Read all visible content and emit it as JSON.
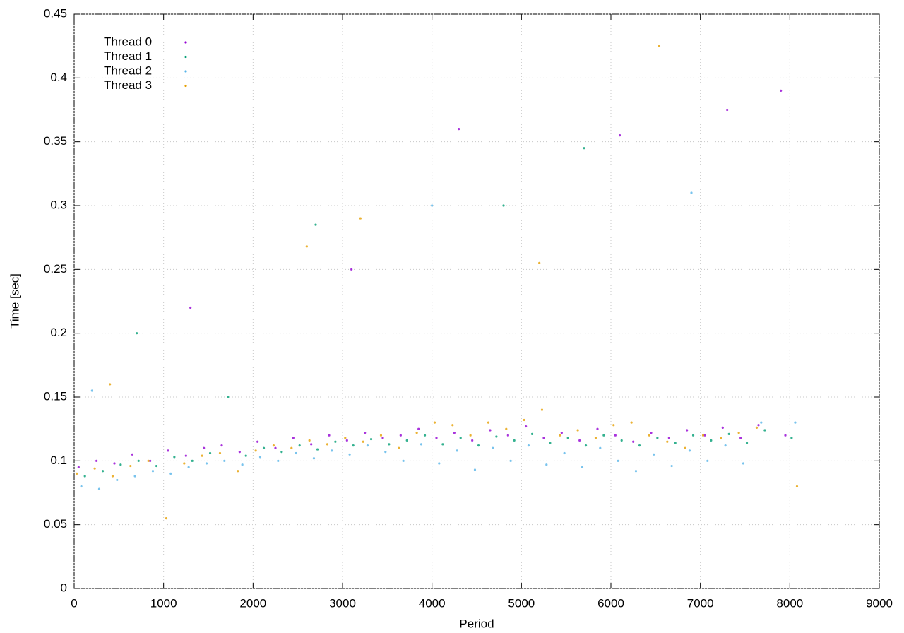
{
  "chart_data": {
    "type": "scatter",
    "x_label": "Period",
    "y_label": "Time [sec]",
    "xlim": [
      0,
      9000
    ],
    "xticks": [
      0,
      1000,
      2000,
      3000,
      4000,
      5000,
      6000,
      7000,
      8000,
      9000
    ],
    "ylim": [
      0,
      0.45
    ],
    "yticks": [
      0,
      0.05,
      0.1,
      0.15,
      0.2,
      0.25,
      0.3,
      0.35,
      0.4,
      0.45
    ],
    "grid": true,
    "legend": "upper left",
    "series": [
      {
        "name": "Thread 0",
        "color": "#9400d3",
        "x": [
          50,
          250,
          450,
          650,
          850,
          1050,
          1250,
          1450,
          1650,
          1850,
          2050,
          2250,
          2450,
          2650,
          2850,
          3050,
          3250,
          3450,
          3650,
          3850,
          4050,
          4250,
          4450,
          4650,
          4850,
          5050,
          5250,
          5450,
          5650,
          5850,
          6050,
          6250,
          6450,
          6650,
          6850,
          7050,
          7250,
          7450,
          7650,
          7950,
          1300,
          3100,
          4300,
          6100,
          7300,
          7900
        ],
        "values": [
          0.095,
          0.1,
          0.098,
          0.105,
          0.1,
          0.108,
          0.104,
          0.11,
          0.112,
          0.107,
          0.115,
          0.11,
          0.118,
          0.113,
          0.12,
          0.116,
          0.122,
          0.118,
          0.12,
          0.125,
          0.118,
          0.122,
          0.116,
          0.124,
          0.12,
          0.127,
          0.118,
          0.122,
          0.116,
          0.125,
          0.12,
          0.115,
          0.122,
          0.118,
          0.124,
          0.12,
          0.126,
          0.118,
          0.128,
          0.12,
          0.22,
          0.25,
          0.36,
          0.355,
          0.375,
          0.39
        ]
      },
      {
        "name": "Thread 1",
        "color": "#009e73",
        "x": [
          120,
          320,
          520,
          720,
          920,
          1120,
          1320,
          1520,
          1720,
          1920,
          2120,
          2320,
          2520,
          2720,
          2920,
          3120,
          3320,
          3520,
          3720,
          3920,
          4120,
          4320,
          4520,
          4720,
          4920,
          5120,
          5320,
          5520,
          5720,
          5920,
          6120,
          6320,
          6520,
          6720,
          6920,
          7120,
          7320,
          7520,
          7720,
          8020,
          700,
          2700,
          4800,
          5700
        ],
        "values": [
          0.088,
          0.092,
          0.097,
          0.1,
          0.096,
          0.103,
          0.1,
          0.106,
          0.15,
          0.104,
          0.11,
          0.107,
          0.112,
          0.109,
          0.115,
          0.112,
          0.117,
          0.113,
          0.116,
          0.12,
          0.113,
          0.118,
          0.112,
          0.119,
          0.116,
          0.121,
          0.114,
          0.118,
          0.112,
          0.12,
          0.116,
          0.112,
          0.118,
          0.114,
          0.12,
          0.116,
          0.121,
          0.114,
          0.124,
          0.118,
          0.2,
          0.285,
          0.3,
          0.345
        ]
      },
      {
        "name": "Thread 2",
        "color": "#56b4e9",
        "x": [
          80,
          280,
          480,
          680,
          880,
          1080,
          1280,
          1480,
          1680,
          1880,
          2080,
          2280,
          2480,
          2680,
          2880,
          3080,
          3280,
          3480,
          3680,
          3880,
          4080,
          4280,
          4480,
          4680,
          4880,
          5080,
          5280,
          5480,
          5680,
          5880,
          6080,
          6280,
          6480,
          6680,
          6880,
          7080,
          7280,
          7480,
          7680,
          8060,
          200,
          4000,
          6900
        ],
        "values": [
          0.08,
          0.078,
          0.085,
          0.088,
          0.092,
          0.09,
          0.095,
          0.098,
          0.1,
          0.097,
          0.103,
          0.1,
          0.106,
          0.102,
          0.108,
          0.105,
          0.112,
          0.107,
          0.1,
          0.113,
          0.098,
          0.108,
          0.093,
          0.11,
          0.1,
          0.112,
          0.097,
          0.106,
          0.095,
          0.11,
          0.1,
          0.092,
          0.105,
          0.096,
          0.108,
          0.1,
          0.112,
          0.098,
          0.13,
          0.13,
          0.155,
          0.3,
          0.31
        ]
      },
      {
        "name": "Thread 3",
        "color": "#e69f00",
        "x": [
          30,
          230,
          430,
          630,
          830,
          1030,
          1230,
          1430,
          1630,
          1830,
          2030,
          2230,
          2430,
          2630,
          2830,
          3030,
          3230,
          3430,
          3630,
          3830,
          4030,
          4230,
          4430,
          4630,
          4830,
          5030,
          5230,
          5430,
          5630,
          5830,
          6030,
          6230,
          6430,
          6630,
          6830,
          7030,
          7230,
          7430,
          7630,
          8080,
          400,
          2600,
          3200,
          5200,
          6540
        ],
        "values": [
          0.09,
          0.094,
          0.088,
          0.096,
          0.1,
          0.055,
          0.098,
          0.104,
          0.106,
          0.092,
          0.108,
          0.112,
          0.11,
          0.116,
          0.113,
          0.118,
          0.115,
          0.12,
          0.11,
          0.122,
          0.13,
          0.128,
          0.12,
          0.13,
          0.125,
          0.132,
          0.14,
          0.12,
          0.124,
          0.118,
          0.128,
          0.13,
          0.12,
          0.115,
          0.11,
          0.12,
          0.118,
          0.122,
          0.126,
          0.08,
          0.16,
          0.268,
          0.29,
          0.255,
          0.425
        ]
      }
    ]
  }
}
